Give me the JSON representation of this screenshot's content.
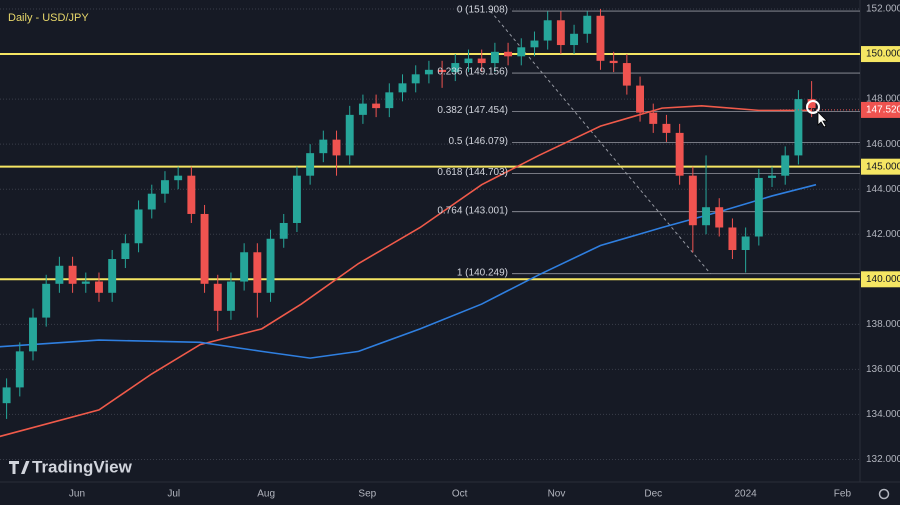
{
  "chart_data": {
    "type": "candlestick",
    "title": "Daily - USD/JPY",
    "brand": "TradingView",
    "xlim": [
      -17.5,
      178.0
    ],
    "xticks": [
      {
        "value": 0,
        "label": "Jun"
      },
      {
        "value": 22,
        "label": "Jul"
      },
      {
        "value": 43,
        "label": "Aug"
      },
      {
        "value": 66,
        "label": "Sep"
      },
      {
        "value": 87,
        "label": "Oct"
      },
      {
        "value": 109,
        "label": "Nov"
      },
      {
        "value": 131,
        "label": "Dec"
      },
      {
        "value": 152,
        "label": "2024"
      },
      {
        "value": 174,
        "label": "Feb"
      }
    ],
    "ylim": [
      131.0,
      152.4
    ],
    "yticks": [
      {
        "value": 152,
        "label": "152.000"
      },
      {
        "value": 148,
        "label": "148.000"
      },
      {
        "value": 146,
        "label": "146.000"
      },
      {
        "value": 144,
        "label": "144.000"
      },
      {
        "value": 142,
        "label": "142.000"
      },
      {
        "value": 138,
        "label": "138.000"
      },
      {
        "value": 136,
        "label": "136.000"
      },
      {
        "value": 134,
        "label": "134.000"
      },
      {
        "value": 132,
        "label": "132.000"
      }
    ],
    "grid": true,
    "levels": [
      {
        "value": 150,
        "label": "150.000"
      },
      {
        "value": 145,
        "label": "145.000"
      },
      {
        "value": 140,
        "label": "140.000"
      }
    ],
    "level_color": "#f5e663",
    "last_price": {
      "value": 147.52,
      "label": "147.520"
    },
    "up_color": "#26a69a",
    "down_color": "#ef5350",
    "fib": {
      "x": [
        94,
        144
      ],
      "levels": [
        {
          "value": 151.908,
          "label": "0 (151.908)"
        },
        {
          "value": 149.156,
          "label": "0.236 (149.156)"
        },
        {
          "value": 147.454,
          "label": "0.382 (147.454)"
        },
        {
          "value": 146.079,
          "label": "0.5 (146.079)"
        },
        {
          "value": 144.703,
          "label": "0.618 (144.703)"
        },
        {
          "value": 143.001,
          "label": "0.764 (143.001)"
        },
        {
          "value": 140.249,
          "label": "1 (140.249)"
        }
      ]
    },
    "x": [
      -16,
      -13,
      -10,
      -7,
      -4,
      -1,
      2,
      5,
      8,
      11,
      14,
      17,
      20,
      23,
      26,
      29,
      32,
      35,
      38,
      41,
      44,
      47,
      50,
      53,
      56,
      59,
      62,
      65,
      68,
      71,
      74,
      77,
      80,
      83,
      86,
      89,
      92,
      95,
      98,
      101,
      104,
      107,
      110,
      113,
      116,
      119,
      122,
      125,
      128,
      131,
      134,
      137,
      140,
      143,
      146,
      149,
      152,
      155,
      158,
      161,
      164,
      167
    ],
    "open": [
      134.5,
      135.2,
      136.8,
      138.3,
      139.8,
      140.6,
      139.8,
      139.9,
      139.4,
      140.9,
      141.6,
      143.1,
      143.8,
      144.4,
      144.6,
      142.9,
      139.8,
      138.6,
      139.9,
      141.2,
      139.4,
      141.8,
      142.5,
      144.6,
      145.6,
      146.2,
      145.5,
      147.3,
      147.8,
      147.6,
      148.3,
      148.7,
      149.1,
      149.3,
      149.2,
      149.6,
      149.8,
      149.6,
      150.1,
      149.9,
      150.3,
      150.6,
      151.5,
      150.4,
      150.9,
      151.7,
      149.7,
      149.6,
      148.6,
      147.4,
      146.9,
      146.5,
      144.6,
      142.4,
      143.2,
      142.3,
      141.3,
      141.9,
      144.5,
      144.6,
      145.5,
      148.0
    ],
    "high": [
      135.6,
      137.2,
      138.7,
      140.2,
      141.0,
      141.0,
      140.3,
      140.3,
      141.3,
      142.0,
      143.5,
      144.2,
      144.8,
      145.0,
      145.0,
      143.3,
      140.2,
      140.3,
      141.6,
      141.6,
      142.2,
      142.9,
      145.0,
      146.0,
      146.6,
      146.6,
      147.7,
      148.2,
      148.2,
      148.7,
      149.1,
      149.5,
      149.7,
      149.7,
      150.0,
      150.2,
      150.2,
      150.5,
      150.5,
      150.7,
      151.0,
      151.9,
      151.9,
      151.3,
      151.9,
      152.0,
      150.1,
      150.0,
      149.0,
      147.8,
      147.3,
      146.9,
      145.0,
      145.5,
      143.6,
      142.7,
      142.3,
      144.9,
      145.0,
      145.9,
      148.4,
      148.8
    ],
    "low": [
      133.8,
      134.8,
      136.4,
      137.9,
      139.4,
      139.4,
      139.4,
      139.0,
      139.0,
      140.5,
      141.2,
      142.7,
      143.4,
      144.0,
      142.5,
      139.4,
      137.7,
      138.2,
      139.5,
      138.3,
      139.0,
      141.4,
      142.1,
      144.2,
      145.2,
      144.6,
      145.1,
      146.9,
      147.2,
      147.2,
      147.9,
      148.3,
      148.7,
      148.5,
      148.8,
      149.2,
      149.2,
      149.2,
      149.5,
      149.5,
      149.9,
      150.2,
      150.0,
      150.0,
      150.5,
      149.3,
      149.2,
      148.2,
      147.0,
      146.5,
      146.1,
      144.2,
      141.2,
      142.0,
      141.9,
      140.9,
      140.3,
      141.5,
      144.1,
      144.2,
      145.1,
      147.2
    ],
    "close": [
      135.2,
      136.8,
      138.3,
      139.8,
      140.6,
      139.8,
      139.9,
      139.4,
      140.9,
      141.6,
      143.1,
      143.8,
      144.4,
      144.6,
      142.9,
      139.8,
      138.6,
      139.9,
      141.2,
      139.4,
      141.8,
      142.5,
      144.6,
      145.6,
      146.2,
      145.5,
      147.3,
      147.8,
      147.6,
      148.3,
      148.7,
      149.1,
      149.3,
      149.2,
      149.6,
      149.8,
      149.6,
      150.1,
      149.9,
      150.3,
      150.6,
      151.5,
      150.4,
      150.9,
      151.7,
      149.7,
      149.6,
      148.6,
      147.4,
      146.9,
      146.5,
      144.6,
      142.4,
      143.2,
      142.3,
      141.3,
      141.9,
      144.5,
      144.6,
      145.5,
      148.0,
      147.6
    ],
    "series": [
      {
        "color": "#f05a4a",
        "x": [
          -18,
          5,
          17,
          28,
          42,
          51,
          64,
          78,
          92,
          105,
          119,
          133,
          142,
          155,
          167
        ],
        "values": [
          133.0,
          134.2,
          135.8,
          137.1,
          137.8,
          138.9,
          140.7,
          142.3,
          144.2,
          145.5,
          146.8,
          147.6,
          147.7,
          147.5,
          147.5
        ]
      },
      {
        "color": "#2f7fe0",
        "x": [
          -18,
          5,
          28,
          42,
          53,
          64,
          78,
          92,
          105,
          119,
          133,
          146,
          158,
          168
        ],
        "values": [
          137.0,
          137.3,
          137.2,
          136.8,
          136.5,
          136.8,
          137.8,
          138.9,
          140.2,
          141.5,
          142.3,
          143.0,
          143.7,
          144.2
        ]
      }
    ]
  }
}
